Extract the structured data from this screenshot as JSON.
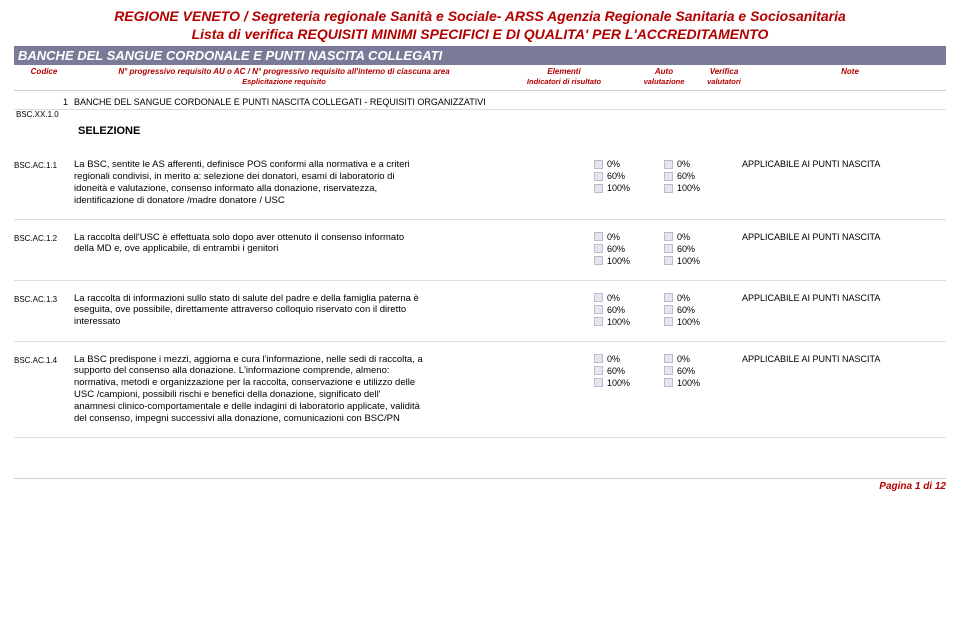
{
  "header": {
    "title1": "REGIONE  VENETO / Segreteria regionale Sanità e Sociale- ARSS Agenzia Regionale Sanitaria e Sociosanitaria",
    "title2": "Lista di verifica REQUISITI MINIMI SPECIFICI E DI QUALITA' PER L'ACCREDITAMENTO",
    "bar": "BANCHE DEL SANGUE CORDONALE E PUNTI NASCITA COLLEGATI"
  },
  "columns": {
    "code": "Codice",
    "desc_line1": "N° progressivo requisito AU o AC / N° progressivo requisito all'interno di ciascuna area",
    "desc_line2": "Esplicitazione requisito",
    "elem_line1": "Elementi",
    "elem_line2": "Indicatori di risultato",
    "auto_line1": "Auto",
    "auto_line2": "valutazione",
    "ver_line1": "Verifica",
    "ver_line2": "valutatori",
    "note": "Note"
  },
  "section": {
    "num": "1",
    "text": "BANCHE DEL SANGUE CORDONALE E PUNTI NASCITA COLLEGATI - REQUISITI ORGANIZZATIVI"
  },
  "group_code": "BSC.XX.1.0",
  "group_title": "SELEZIONE",
  "check_labels": [
    "0%",
    "60%",
    "100%"
  ],
  "note_text": "APPLICABILE AI PUNTI NASCITA",
  "rows": [
    {
      "code": "BSC.AC.1.1",
      "text": "La BSC, sentite le AS afferenti, definisce POS conformi alla normativa e a criteri regionali condivisi, in merito a: selezione dei donatori, esami di laboratorio di idoneità e valutazione, consenso informato alla donazione, riservatezza, identificazione di donatore /madre donatore / USC"
    },
    {
      "code": "BSC.AC.1.2",
      "text": "La raccolta dell'USC è effettuata solo dopo aver ottenuto il consenso informato della MD e, ove applicabile, di entrambi i genitori"
    },
    {
      "code": "BSC.AC.1.3",
      "text": "La raccolta di informazioni sullo stato di salute del padre e della famiglia paterna è eseguita, ove possibile, direttamente attraverso colloquio riservato con il diretto interessato"
    },
    {
      "code": "BSC.AC.1.4",
      "text": "La BSC predispone i mezzi, aggiorna e cura l'informazione, nelle sedi di raccolta, a supporto del consenso alla donazione. L'informazione comprende, almeno: normativa, metodi e organizzazione per la raccolta, conservazione e utilizzo delle USC /campioni, possibili rischi e benefici della donazione, significato dell' anamnesi clinico-comportamentale e delle indagini di laboratorio applicate, validità del consenso, impegni successivi alla donazione, comunicazioni con BSC/PN"
    }
  ],
  "footer": "Pagina 1 di 12",
  "colors": {
    "accent": "#b30000",
    "bar_bg": "#7b7b99",
    "checkbox_bg": "#e6e6f2",
    "checkbox_border": "#bbbbcc"
  }
}
